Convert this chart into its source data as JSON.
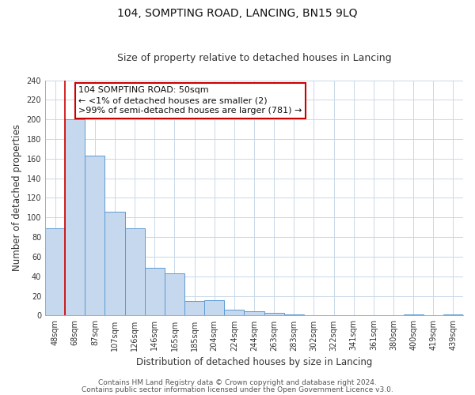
{
  "title": "104, SOMPTING ROAD, LANCING, BN15 9LQ",
  "subtitle": "Size of property relative to detached houses in Lancing",
  "xlabel": "Distribution of detached houses by size in Lancing",
  "ylabel": "Number of detached properties",
  "categories": [
    "48sqm",
    "68sqm",
    "87sqm",
    "107sqm",
    "126sqm",
    "146sqm",
    "165sqm",
    "185sqm",
    "204sqm",
    "224sqm",
    "244sqm",
    "263sqm",
    "283sqm",
    "302sqm",
    "322sqm",
    "341sqm",
    "361sqm",
    "380sqm",
    "400sqm",
    "419sqm",
    "439sqm"
  ],
  "values": [
    89,
    200,
    163,
    106,
    89,
    49,
    43,
    15,
    16,
    6,
    4,
    3,
    1,
    0,
    0,
    0,
    0,
    0,
    1,
    0,
    1
  ],
  "bar_color": "#c5d8ed",
  "bar_edge_color": "#5b9bd5",
  "highlight_color": "#cc0000",
  "annotation_title": "104 SOMPTING ROAD: 50sqm",
  "annotation_line1": "← <1% of detached houses are smaller (2)",
  "annotation_line2": ">99% of semi-detached houses are larger (781) →",
  "annotation_box_facecolor": "#ffffff",
  "annotation_box_edgecolor": "#cc0000",
  "ylim": [
    0,
    240
  ],
  "yticks": [
    0,
    20,
    40,
    60,
    80,
    100,
    120,
    140,
    160,
    180,
    200,
    220,
    240
  ],
  "footer1": "Contains HM Land Registry data © Crown copyright and database right 2024.",
  "footer2": "Contains public sector information licensed under the Open Government Licence v3.0.",
  "bg_color": "#ffffff",
  "grid_color": "#c8d8e8",
  "title_fontsize": 10,
  "subtitle_fontsize": 9,
  "axis_label_fontsize": 8.5,
  "tick_fontsize": 7,
  "annotation_fontsize": 8,
  "footer_fontsize": 6.5
}
